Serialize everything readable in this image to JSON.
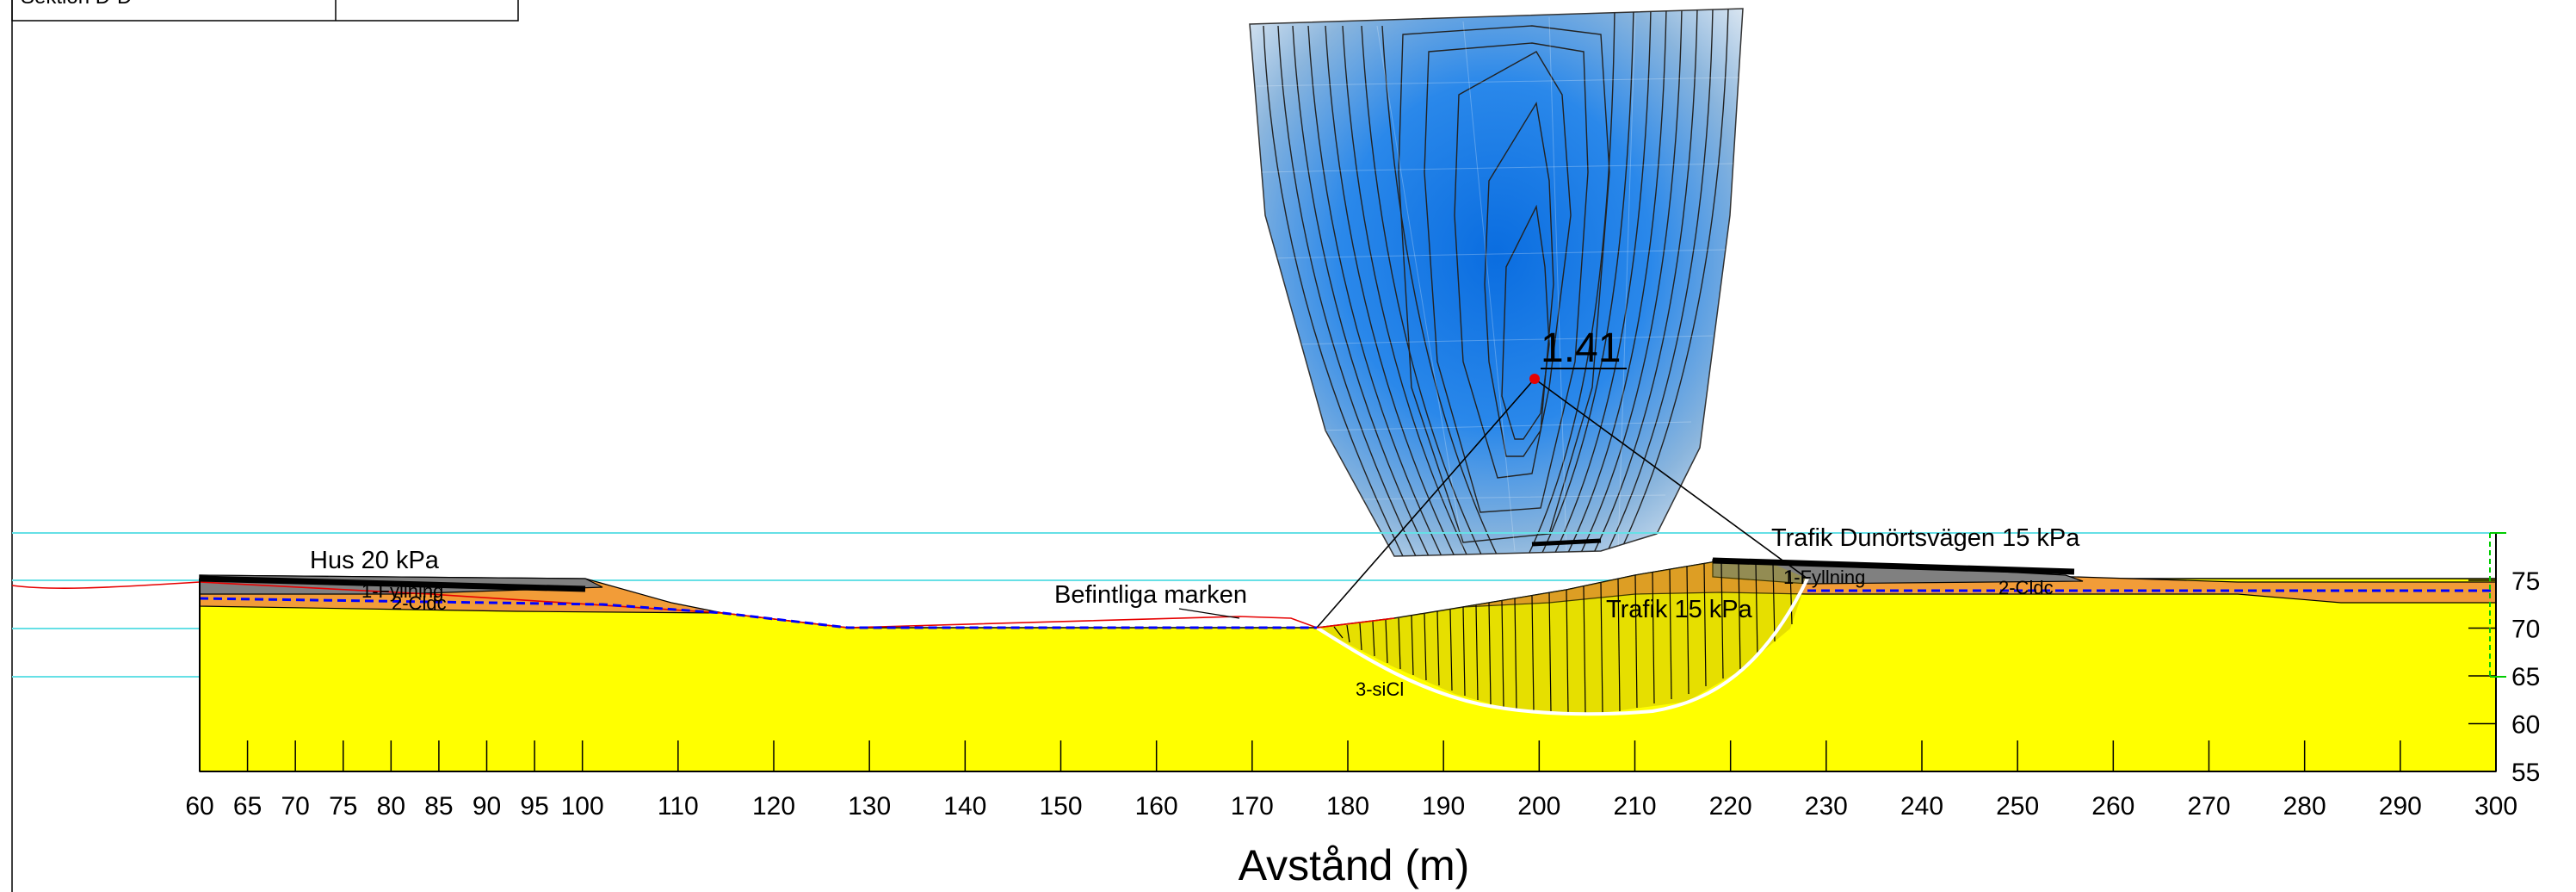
{
  "header_table": {
    "section_label": "Sektion D-D"
  },
  "axis": {
    "x_title": "Avstånd (m)",
    "x_ticks": [
      60,
      65,
      70,
      75,
      80,
      85,
      90,
      95,
      100,
      110,
      120,
      130,
      140,
      150,
      160,
      170,
      180,
      190,
      200,
      210,
      220,
      230,
      240,
      250,
      260,
      270,
      280,
      290,
      300
    ],
    "y_ticks": [
      55,
      60,
      65,
      70,
      75
    ],
    "x_range": [
      60,
      300
    ],
    "y_range": [
      55,
      75
    ]
  },
  "annotations": {
    "house_load": "Hus 20 kPa",
    "existing_ground": "Befintliga marken",
    "traffic_road_load": "Trafik Dunörtsvägen 15 kPa",
    "traffic_load": "Trafik 15 kPa",
    "critical_fos": "1.41"
  },
  "layers": {
    "fill_left": "1-Fyllning",
    "clay_left": "2-Cldc",
    "silty_clay": "3-siCl",
    "fill_right": "1-Fyllning",
    "clay_right": "2-Cldc"
  },
  "colors": {
    "soil_yellow": "#ffff00",
    "fill_gray": "#808080",
    "clay_orange": "#f29c38",
    "water_line": "#0000ff",
    "grid_cyan": "#66e0e6",
    "grid_blue_center": "#1a78e6",
    "profile_red": "#e60000",
    "slip_white": "#ffffff",
    "right_marker_green": "#00cc00"
  }
}
